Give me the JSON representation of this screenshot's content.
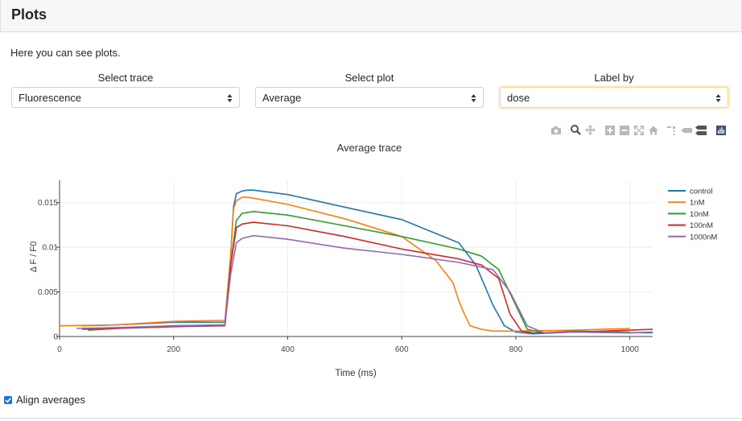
{
  "page": {
    "title": "Plots",
    "intro": "Here you can see plots."
  },
  "controls": {
    "trace": {
      "label": "Select trace",
      "value": "Fluorescence"
    },
    "plot": {
      "label": "Select plot",
      "value": "Average"
    },
    "label_by": {
      "label": "Label by",
      "value": "dose"
    }
  },
  "modebar": [
    "camera-icon",
    "zoom-icon",
    "pan-icon",
    "zoom-in-icon",
    "zoom-out-icon",
    "autoscale-icon",
    "reset-axes-icon",
    "spike-lines-icon",
    "hover-closest-icon",
    "hover-compare-icon",
    "plotly-logo-icon"
  ],
  "checkbox": {
    "label": "Align averages",
    "checked": true
  },
  "chart_data": {
    "type": "line",
    "title": "Average trace",
    "xlabel": "Time (ms)",
    "ylabel": "Δ F / F0",
    "xlim": [
      0,
      1040
    ],
    "ylim": [
      0,
      0.0175
    ],
    "xticks": [
      0,
      200,
      400,
      600,
      800,
      1000
    ],
    "yticks": [
      0,
      0.005,
      0.01,
      0.015
    ],
    "ytick_labels": [
      "0",
      "0.005",
      "0.01",
      "0.015"
    ],
    "grid": true,
    "legend_position": "top-right",
    "series": [
      {
        "name": "control",
        "color": "#1f77b4",
        "x": [
          40,
          100,
          200,
          290,
          300,
          305,
          310,
          320,
          330,
          340,
          400,
          500,
          600,
          700,
          730,
          760,
          780,
          800,
          830,
          900,
          1000,
          1040
        ],
        "y": [
          0.0012,
          0.0013,
          0.0016,
          0.0016,
          0.009,
          0.0145,
          0.016,
          0.0163,
          0.0164,
          0.0164,
          0.0159,
          0.0145,
          0.0131,
          0.0105,
          0.008,
          0.0035,
          0.0012,
          0.0005,
          0.0003,
          0.0005,
          0.0004,
          0.0005
        ]
      },
      {
        "name": "1nM",
        "color": "#ff7f0e",
        "x": [
          0,
          100,
          200,
          290,
          300,
          305,
          310,
          320,
          330,
          340,
          400,
          500,
          600,
          660,
          690,
          700,
          710,
          720,
          740,
          760,
          800,
          900,
          1000
        ],
        "y": [
          0.0012,
          0.0013,
          0.0017,
          0.0018,
          0.009,
          0.0143,
          0.0152,
          0.0156,
          0.0156,
          0.0155,
          0.0148,
          0.0132,
          0.0112,
          0.0085,
          0.006,
          0.004,
          0.0025,
          0.0012,
          0.0008,
          0.0006,
          0.0006,
          0.0007,
          0.0009
        ]
      },
      {
        "name": "10nM",
        "color": "#2ca02c",
        "x": [
          50,
          100,
          200,
          290,
          300,
          310,
          320,
          340,
          400,
          500,
          600,
          700,
          740,
          770,
          800,
          820,
          850,
          900,
          1000
        ],
        "y": [
          0.0007,
          0.0009,
          0.0012,
          0.0013,
          0.008,
          0.013,
          0.0138,
          0.014,
          0.0136,
          0.0124,
          0.0112,
          0.0098,
          0.009,
          0.0075,
          0.0035,
          0.0008,
          0.0004,
          0.0006,
          0.0005
        ]
      },
      {
        "name": "100nM",
        "color": "#d62728",
        "x": [
          40,
          100,
          200,
          290,
          300,
          310,
          320,
          340,
          400,
          500,
          600,
          700,
          740,
          770,
          790,
          810,
          830,
          900,
          1040
        ],
        "y": [
          0.0008,
          0.0009,
          0.0011,
          0.0012,
          0.008,
          0.0122,
          0.0126,
          0.0128,
          0.0124,
          0.0112,
          0.0098,
          0.0087,
          0.008,
          0.0065,
          0.0025,
          0.0006,
          0.0004,
          0.0005,
          0.0008
        ]
      },
      {
        "name": "1000nM",
        "color": "#9467bd",
        "x": [
          30,
          100,
          200,
          290,
          300,
          310,
          320,
          340,
          400,
          500,
          600,
          700,
          760,
          790,
          820,
          850,
          900,
          1040
        ],
        "y": [
          0.0009,
          0.001,
          0.0012,
          0.0013,
          0.007,
          0.0105,
          0.011,
          0.0113,
          0.0109,
          0.0099,
          0.0092,
          0.0083,
          0.0075,
          0.005,
          0.0012,
          0.0004,
          0.0005,
          0.0004
        ]
      }
    ]
  }
}
